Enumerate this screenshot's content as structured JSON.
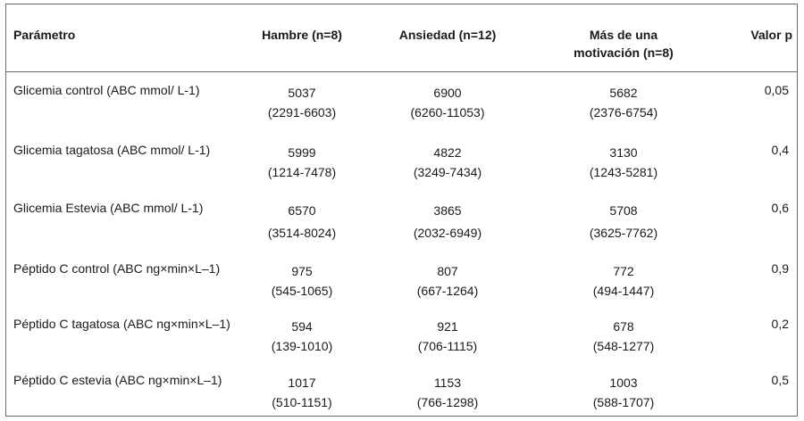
{
  "table": {
    "headers": {
      "param": "Parámetro",
      "hambre": "Hambre (n=8)",
      "ansiedad": "Ansiedad (n=12)",
      "mas_line1": "Más de una",
      "mas_line2": "motivación (n=8)",
      "valor_p": "Valor p"
    },
    "rows": [
      {
        "param": "Glicemia control (ABC mmol/ L-1)",
        "hambre": {
          "v": "5037",
          "r": "(2291-6603)"
        },
        "ansiedad": {
          "v": "6900",
          "r": "(6260-11053)"
        },
        "mas": {
          "v": "5682",
          "r": "(2376-6754)"
        },
        "p": "0,05"
      },
      {
        "param": "Glicemia tagatosa (ABC mmol/ L-1)",
        "hambre": {
          "v": "5999",
          "r": "(1214-7478)"
        },
        "ansiedad": {
          "v": "4822",
          "r": "(3249-7434)"
        },
        "mas": {
          "v": "3130",
          "r": "(1243-5281)"
        },
        "p": "0,4"
      },
      {
        "param": "Glicemia Estevia (ABC mmol/ L-1)",
        "hambre": {
          "v": "6570",
          "r": "(3514-8024)"
        },
        "ansiedad": {
          "v": "3865",
          "r": "(2032-6949)"
        },
        "mas": {
          "v": "5708",
          "r": "(3625-7762)"
        },
        "p": "0,6"
      },
      {
        "param": "Péptido C control (ABC ng×min×L–1)",
        "hambre": {
          "v": "975",
          "r": "(545-1065)"
        },
        "ansiedad": {
          "v": "807",
          "r": "(667-1264)"
        },
        "mas": {
          "v": "772",
          "r": "(494-1447)"
        },
        "p": "0,9"
      },
      {
        "param": "Péptido C tagatosa (ABC ng×min×L–1)",
        "hambre": {
          "v": "594",
          "r": "(139-1010)"
        },
        "ansiedad": {
          "v": "921",
          "r": "(706-1115)"
        },
        "mas": {
          "v": "678",
          "r": "(548-1277)"
        },
        "p": "0,2"
      },
      {
        "param": "Péptido C estevia (ABC ng×min×L–1)",
        "hambre": {
          "v": "1017",
          "r": "(510-1151)"
        },
        "ansiedad": {
          "v": "1153",
          "r": "(766-1298)"
        },
        "mas": {
          "v": "1003",
          "r": "(588-1707)"
        },
        "p": "0,5"
      }
    ]
  }
}
